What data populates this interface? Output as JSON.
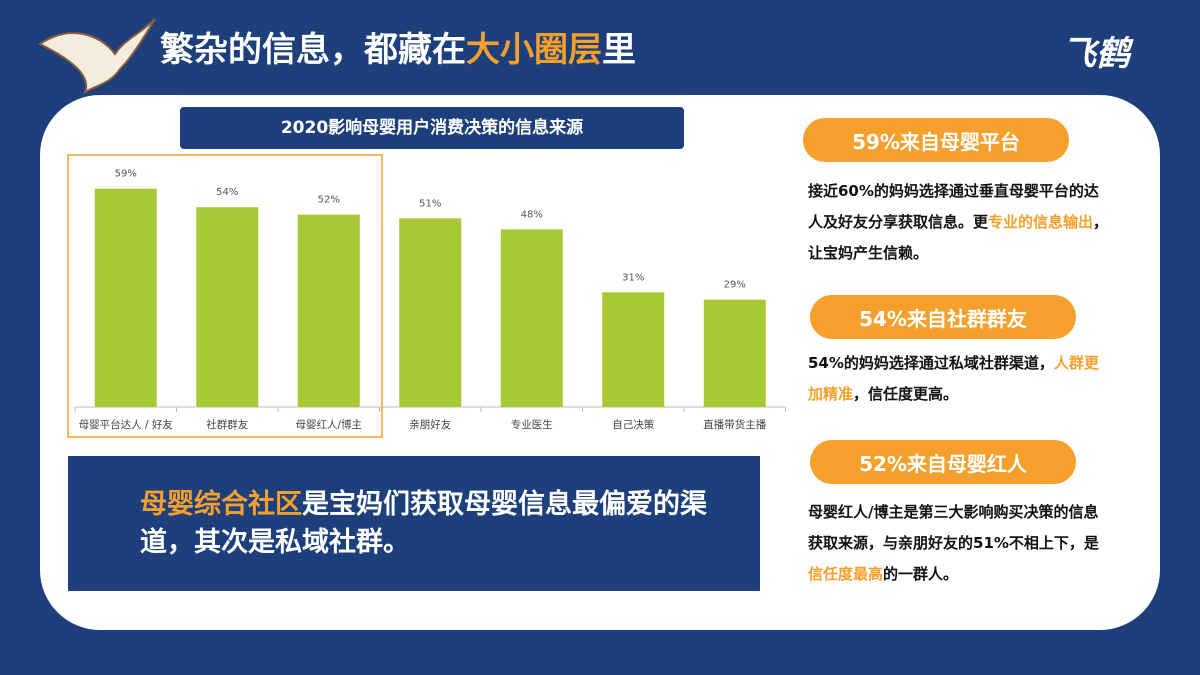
{
  "header": {
    "title_parts": [
      {
        "text": "繁杂的信息，都藏在",
        "accent": false
      },
      {
        "text": "大小圈层",
        "accent": true
      },
      {
        "text": "里",
        "accent": false
      }
    ],
    "logo": "飞鹤"
  },
  "theme": {
    "accent": "#f5a02c",
    "navy": "#1d3f7c"
  },
  "chart_data": {
    "type": "bar",
    "title": "2020影响母婴用户消费决策的信息来源",
    "categories": [
      "母婴平台达人 / 好友",
      "社群群友",
      "母婴红人/博主",
      "亲朋好友",
      "专业医生",
      "自己决策",
      "直播带货主播"
    ],
    "values": [
      59,
      54,
      52,
      51,
      48,
      31,
      29
    ],
    "value_labels": [
      "59%",
      "54%",
      "52%",
      "51%",
      "48%",
      "31%",
      "29%"
    ],
    "color": "#a6c935"
  },
  "summary": {
    "parts": [
      {
        "text": "母婴综合社区",
        "accent": true
      },
      {
        "text": "是宝妈们获取母婴信息最偏爱的渠道，其次是私域社群。",
        "accent": false
      }
    ]
  },
  "insights": [
    {
      "heading": "59%来自母婴平台",
      "parts": [
        {
          "text": "接近60%的妈妈选择通过垂直母婴平台的达人及好友分享获取信息。更",
          "accent": false
        },
        {
          "text": "专业的信息输出",
          "accent": true
        },
        {
          "text": "，让宝妈产生信赖。",
          "accent": false
        }
      ]
    },
    {
      "heading": "54%来自社群群友",
      "parts": [
        {
          "text": "54%的妈妈选择通过私域社群渠道，",
          "accent": false
        },
        {
          "text": "人群更加精准",
          "accent": true
        },
        {
          "text": "，信任度更高。",
          "accent": false
        }
      ]
    },
    {
      "heading": "52%来自母婴红人",
      "parts": [
        {
          "text": "母婴红人/博主是第三大影响购买决策的信息获取来源，与亲朋好友的51%不相上下，是",
          "accent": false
        },
        {
          "text": "信任度最高",
          "accent": true
        },
        {
          "text": "的一群人。",
          "accent": false
        }
      ]
    }
  ]
}
